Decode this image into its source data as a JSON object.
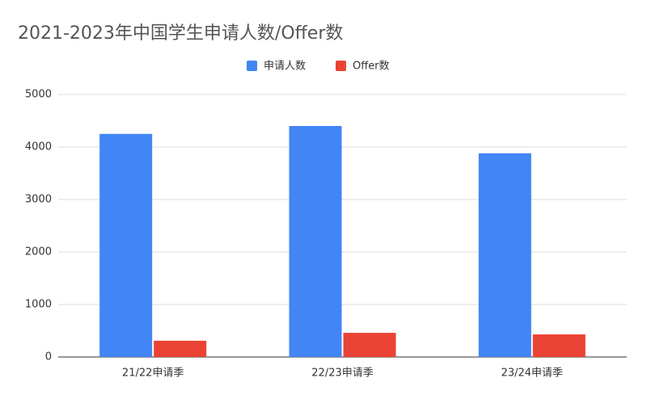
{
  "chart_data": {
    "type": "bar",
    "title": "2021-2023年中国学生申请人数/Offer数",
    "categories": [
      "21/22申请季",
      "22/23申请季",
      "23/24申请季"
    ],
    "series": [
      {
        "name": "申请人数",
        "color": "#4285f4",
        "values": [
          4250,
          4400,
          3880
        ]
      },
      {
        "name": "Offer数",
        "color": "#ea4335",
        "values": [
          310,
          460,
          430
        ]
      }
    ],
    "ylim": [
      0,
      5000
    ],
    "yticks": [
      0,
      1000,
      2000,
      3000,
      4000,
      5000
    ],
    "grid": true,
    "legend": "top"
  }
}
